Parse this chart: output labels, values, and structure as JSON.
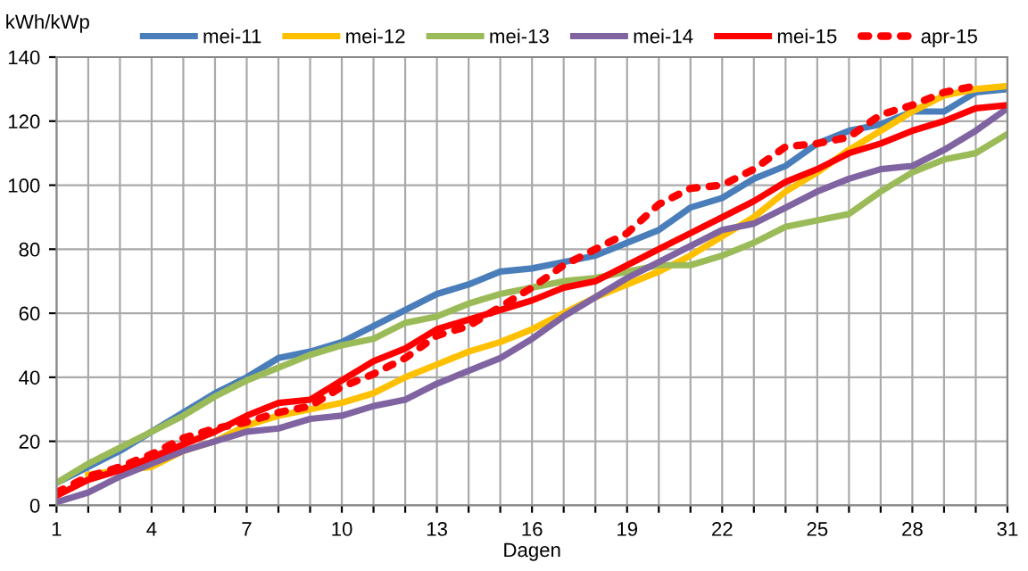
{
  "chart_data": {
    "type": "line",
    "xlabel": "Dagen",
    "ylabel": "kWh/kWp",
    "x": [
      1,
      2,
      3,
      4,
      5,
      6,
      7,
      8,
      9,
      10,
      11,
      12,
      13,
      14,
      15,
      16,
      17,
      18,
      19,
      20,
      21,
      22,
      23,
      24,
      25,
      26,
      27,
      28,
      29,
      30,
      31
    ],
    "series": [
      {
        "name": "mei-11",
        "color": "#4a7ebb",
        "values": [
          7,
          12,
          17,
          23,
          29,
          35,
          40,
          46,
          48,
          51,
          56,
          61,
          66,
          69,
          73,
          74,
          76,
          78,
          82,
          86,
          93,
          96,
          102,
          106,
          113,
          117,
          119,
          123,
          123,
          129,
          130
        ]
      },
      {
        "name": "mei-12",
        "color": "#ffc000",
        "values": [
          null,
          9.5,
          11,
          12,
          17,
          20,
          25,
          28,
          30,
          32,
          35,
          40,
          44,
          48,
          51,
          55,
          60,
          65,
          69,
          73,
          78,
          84,
          90,
          98,
          104,
          111,
          117,
          123,
          128,
          130,
          131
        ]
      },
      {
        "name": "mei-13",
        "color": "#9bbb59",
        "values": [
          7,
          13,
          18,
          23,
          28,
          34,
          39,
          43,
          47,
          50,
          52,
          57,
          59,
          63,
          66,
          68,
          70,
          71,
          73,
          75,
          75,
          78,
          82,
          87,
          89,
          91,
          98,
          104,
          108,
          110,
          116
        ]
      },
      {
        "name": "mei-14",
        "color": "#8064a2",
        "values": [
          1,
          4,
          9,
          13,
          17,
          20,
          23,
          24,
          27,
          28,
          31,
          33,
          38,
          42,
          46,
          52,
          59,
          65,
          71,
          76,
          81,
          86,
          88,
          93,
          98,
          102,
          105,
          106,
          111,
          117,
          124
        ]
      },
      {
        "name": "mei-15",
        "color": "#ff0000",
        "values": [
          3,
          8,
          11,
          15,
          19,
          23,
          28,
          32,
          33,
          39,
          45,
          49,
          55,
          58,
          61,
          64,
          68,
          70,
          75,
          80,
          85,
          90,
          95,
          101,
          105,
          110,
          113,
          117,
          120,
          124,
          125
        ]
      },
      {
        "name": "apr-15",
        "color": "#ff0000",
        "line_style": "dotted",
        "values": [
          4,
          9,
          12,
          16,
          21,
          24,
          26,
          29,
          31,
          37,
          41,
          46,
          53,
          56,
          62,
          68,
          75,
          80,
          85,
          94,
          99,
          100,
          105,
          112,
          113,
          115,
          122,
          125,
          129,
          131,
          null
        ]
      }
    ],
    "xlim": [
      1,
      31
    ],
    "xticks": [
      1,
      {
        "value": 2,
        "label": null
      },
      {
        "value": 3,
        "label": null
      },
      4,
      {
        "value": 5,
        "label": null
      },
      {
        "value": 6,
        "label": null
      },
      7,
      {
        "value": 8,
        "label": null
      },
      {
        "value": 9,
        "label": null
      },
      10,
      {
        "value": 11,
        "label": null
      },
      {
        "value": 12,
        "label": null
      },
      13,
      {
        "value": 14,
        "label": null
      },
      {
        "value": 15,
        "label": null
      },
      16,
      {
        "value": 17,
        "label": null
      },
      {
        "value": 18,
        "label": null
      },
      19,
      {
        "value": 20,
        "label": null
      },
      {
        "value": 21,
        "label": null
      },
      22,
      {
        "value": 23,
        "label": null
      },
      {
        "value": 24,
        "label": null
      },
      25,
      {
        "value": 26,
        "label": null
      },
      {
        "value": 27,
        "label": null
      },
      28,
      {
        "value": 29,
        "label": null
      },
      {
        "value": 30,
        "label": null
      },
      31
    ],
    "ylim": [
      0,
      140
    ],
    "yticks": [
      0,
      20,
      40,
      60,
      80,
      100,
      120,
      140
    ],
    "grid": true,
    "legend": "top",
    "line_style": "solid"
  }
}
